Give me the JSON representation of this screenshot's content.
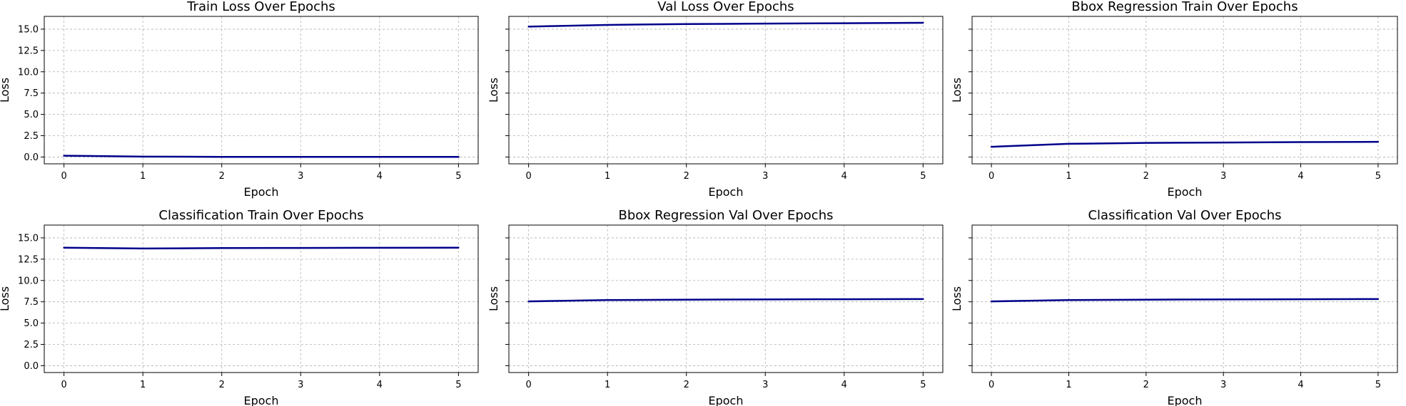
{
  "colors": {
    "line": "#00008b"
  },
  "chart_data": [
    {
      "type": "line",
      "title": "Train Loss Over Epochs",
      "xlabel": "Epoch",
      "ylabel": "Loss",
      "x": [
        0,
        1,
        2,
        3,
        4,
        5
      ],
      "series": [
        {
          "values": [
            0.15,
            0.05,
            0.02,
            0.01,
            0.01,
            0.01
          ]
        }
      ],
      "xlim": [
        -0.25,
        5.25
      ],
      "ylim": [
        -0.8,
        16.5
      ],
      "xticks": [
        0,
        1,
        2,
        3,
        4,
        5
      ],
      "yticks": [
        0,
        2.5,
        5,
        7.5,
        10,
        12.5,
        15
      ],
      "ytick_labels": [
        "0.0",
        "2.5",
        "5.0",
        "7.5",
        "10.0",
        "12.5",
        "15.0"
      ],
      "show_ytick_labels": true,
      "grid": true
    },
    {
      "type": "line",
      "title": "Val Loss Over Epochs",
      "xlabel": "Epoch",
      "ylabel": "Loss",
      "x": [
        0,
        1,
        2,
        3,
        4,
        5
      ],
      "series": [
        {
          "values": [
            15.3,
            15.5,
            15.6,
            15.65,
            15.7,
            15.75
          ]
        }
      ],
      "xlim": [
        -0.25,
        5.25
      ],
      "ylim": [
        -0.8,
        16.5
      ],
      "xticks": [
        0,
        1,
        2,
        3,
        4,
        5
      ],
      "yticks": [
        0,
        2.5,
        5,
        7.5,
        10,
        12.5,
        15
      ],
      "ytick_labels": [
        "0.0",
        "2.5",
        "5.0",
        "7.5",
        "10.0",
        "12.5",
        "15.0"
      ],
      "show_ytick_labels": false,
      "grid": true
    },
    {
      "type": "line",
      "title": "Bbox Regression Train Over Epochs",
      "xlabel": "Epoch",
      "ylabel": "Loss",
      "x": [
        0,
        1,
        2,
        3,
        4,
        5
      ],
      "series": [
        {
          "values": [
            1.2,
            1.55,
            1.65,
            1.7,
            1.75,
            1.78
          ]
        }
      ],
      "xlim": [
        -0.25,
        5.25
      ],
      "ylim": [
        -0.8,
        16.5
      ],
      "xticks": [
        0,
        1,
        2,
        3,
        4,
        5
      ],
      "yticks": [
        0,
        2.5,
        5,
        7.5,
        10,
        12.5,
        15
      ],
      "ytick_labels": [
        "0.0",
        "2.5",
        "5.0",
        "7.5",
        "10.0",
        "12.5",
        "15.0"
      ],
      "show_ytick_labels": false,
      "grid": true
    },
    {
      "type": "line",
      "title": "Classification Train Over Epochs",
      "xlabel": "Epoch",
      "ylabel": "Loss",
      "x": [
        0,
        1,
        2,
        3,
        4,
        5
      ],
      "series": [
        {
          "values": [
            13.85,
            13.75,
            13.8,
            13.82,
            13.84,
            13.85
          ]
        }
      ],
      "xlim": [
        -0.25,
        5.25
      ],
      "ylim": [
        -0.8,
        16.5
      ],
      "xticks": [
        0,
        1,
        2,
        3,
        4,
        5
      ],
      "yticks": [
        0,
        2.5,
        5,
        7.5,
        10,
        12.5,
        15
      ],
      "ytick_labels": [
        "0.0",
        "2.5",
        "5.0",
        "7.5",
        "10.0",
        "12.5",
        "15.0"
      ],
      "show_ytick_labels": true,
      "grid": true
    },
    {
      "type": "line",
      "title": "Bbox Regression Val Over Epochs",
      "xlabel": "Epoch",
      "ylabel": "Loss",
      "x": [
        0,
        1,
        2,
        3,
        4,
        5
      ],
      "series": [
        {
          "values": [
            7.55,
            7.7,
            7.75,
            7.78,
            7.8,
            7.82
          ]
        }
      ],
      "xlim": [
        -0.25,
        5.25
      ],
      "ylim": [
        -0.8,
        16.5
      ],
      "xticks": [
        0,
        1,
        2,
        3,
        4,
        5
      ],
      "yticks": [
        0,
        2.5,
        5,
        7.5,
        10,
        12.5,
        15
      ],
      "ytick_labels": [
        "0.0",
        "2.5",
        "5.0",
        "7.5",
        "10.0",
        "12.5",
        "15.0"
      ],
      "show_ytick_labels": false,
      "grid": true
    },
    {
      "type": "line",
      "title": "Classification Val Over Epochs",
      "xlabel": "Epoch",
      "ylabel": "Loss",
      "x": [
        0,
        1,
        2,
        3,
        4,
        5
      ],
      "series": [
        {
          "values": [
            7.55,
            7.7,
            7.75,
            7.78,
            7.8,
            7.82
          ]
        }
      ],
      "xlim": [
        -0.25,
        5.25
      ],
      "ylim": [
        -0.8,
        16.5
      ],
      "xticks": [
        0,
        1,
        2,
        3,
        4,
        5
      ],
      "yticks": [
        0,
        2.5,
        5,
        7.5,
        10,
        12.5,
        15
      ],
      "ytick_labels": [
        "0.0",
        "2.5",
        "5.0",
        "7.5",
        "10.0",
        "12.5",
        "15.0"
      ],
      "show_ytick_labels": false,
      "grid": true
    }
  ]
}
